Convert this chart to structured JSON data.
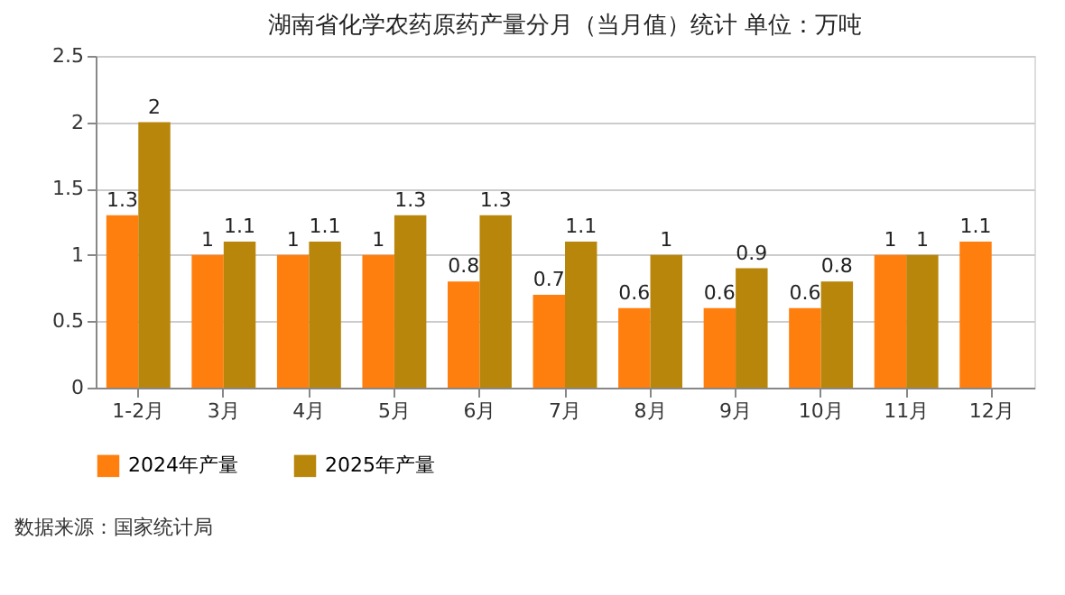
{
  "chart_data": {
    "type": "bar",
    "title": "湖南省化学农药原药产量分月（当月值）统计  单位：万吨",
    "categories": [
      "1-2月",
      "3月",
      "4月",
      "5月",
      "6月",
      "7月",
      "8月",
      "9月",
      "10月",
      "11月",
      "12月"
    ],
    "series": [
      {
        "name": "2024年产量",
        "color": "#ff7f0e",
        "values": [
          1.3,
          1,
          1,
          1,
          0.8,
          0.7,
          0.6,
          0.6,
          0.6,
          1,
          1.1
        ]
      },
      {
        "name": "2025年产量",
        "color": "#b8860b",
        "values": [
          2,
          1.1,
          1.1,
          1.3,
          1.3,
          1.1,
          1,
          0.9,
          0.8,
          1,
          null
        ]
      }
    ],
    "ylim": [
      0,
      2.5
    ],
    "yticks": [
      0,
      0.5,
      1,
      1.5,
      2,
      2.5
    ],
    "grid": "y",
    "legend": "bottom",
    "data_labels": true,
    "annotations": [
      "数据来源：国家统计局"
    ]
  }
}
